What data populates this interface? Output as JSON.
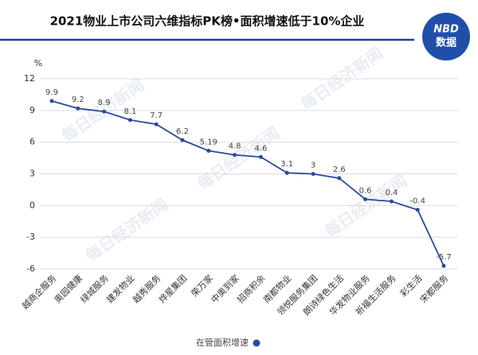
{
  "chart_data": {
    "type": "line",
    "title": "2021物业上市公司六维指标PK榜•面积增速低于10%企业",
    "y_axis_label": "%",
    "logo_text": "NBD",
    "logo_subtext": "数据",
    "watermark": "每日经济新闻",
    "categories": [
      "越商企服务",
      "奥园健康",
      "绿城服务",
      "建发物业",
      "越秀服务",
      "烨星集团",
      "荣万家",
      "中奥到家",
      "招商积余",
      "南都物业",
      "领悦服务集团",
      "朗诗绿色生活",
      "华发物业服务",
      "祈福生活服务",
      "彩生活",
      "宋都服务"
    ],
    "series": [
      {
        "name": "在管面积增速",
        "color": "#2b4a9e",
        "values": [
          9.9,
          9.2,
          8.9,
          8.1,
          7.7,
          6.2,
          5.19,
          4.8,
          4.6,
          3.1,
          3,
          2.6,
          0.6,
          0.4,
          -0.4,
          -5.7
        ]
      }
    ],
    "ylim": [
      -6,
      12
    ],
    "yticks": [
      12,
      9,
      6,
      3,
      0,
      -3,
      -6
    ],
    "grid": true,
    "legend": "bottom"
  }
}
